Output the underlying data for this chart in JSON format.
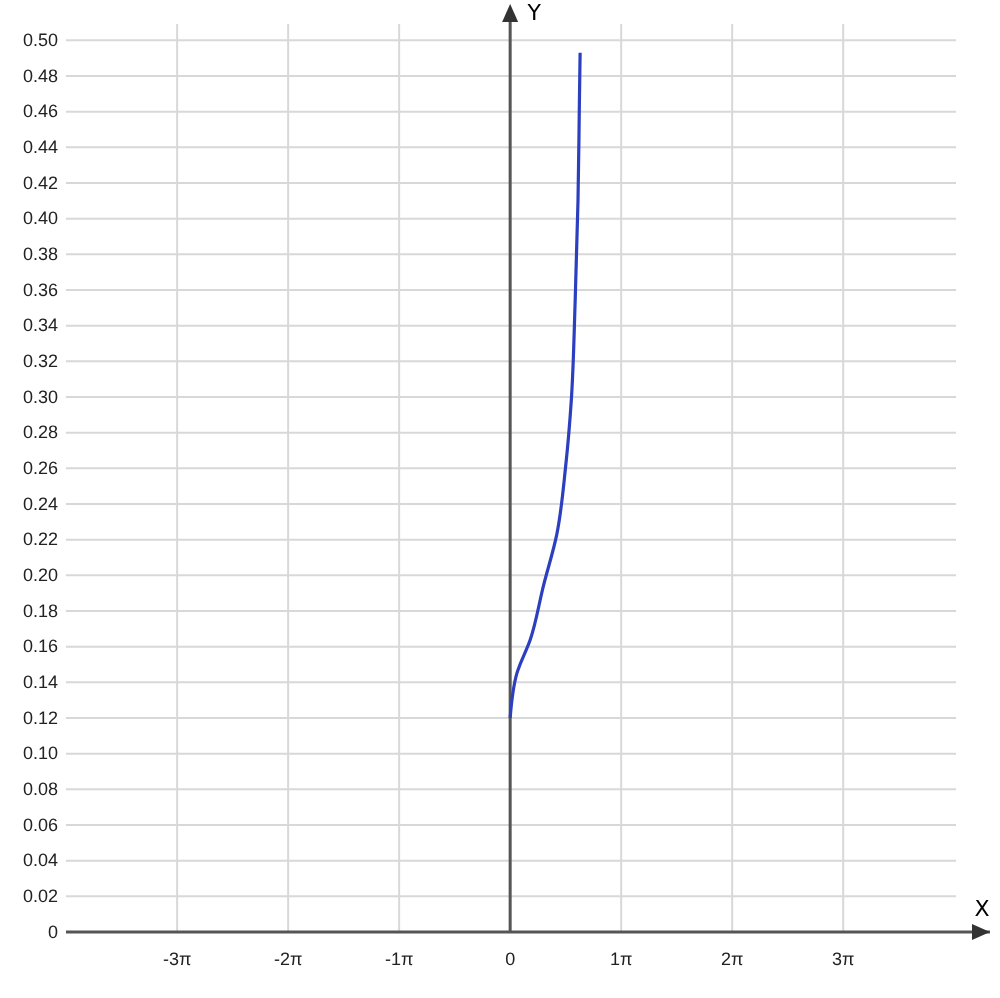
{
  "chart_data": {
    "type": "line",
    "xlabel": "X",
    "ylabel": "Y",
    "x": [
      0,
      0.19,
      0.57,
      0.94,
      1.32,
      1.57,
      1.73,
      1.84,
      1.92,
      1.96,
      1.98
    ],
    "series": [
      {
        "color": "#2b3fbf",
        "values": [
          0.12,
          0.145,
          0.164,
          0.194,
          0.223,
          0.261,
          0.298,
          0.354,
          0.41,
          0.466,
          0.493
        ]
      }
    ],
    "xlim": [
      -12.57,
      13.58
    ],
    "ylim": [
      0,
      0.517
    ],
    "xticks": [
      {
        "value": -9.42478,
        "label": "-3π"
      },
      {
        "value": -6.28319,
        "label": "-2π"
      },
      {
        "value": -3.14159,
        "label": "-1π"
      },
      0,
      {
        "value": 3.14159,
        "label": "1π"
      },
      {
        "value": 6.28319,
        "label": "2π"
      },
      {
        "value": 9.42478,
        "label": "3π"
      }
    ],
    "yticks": [
      {
        "value": 0,
        "label": "0"
      },
      {
        "value": 0.02,
        "label": "0.02"
      },
      {
        "value": 0.04,
        "label": "0.04"
      },
      {
        "value": 0.06,
        "label": "0.06"
      },
      {
        "value": 0.08,
        "label": "0.08"
      },
      {
        "value": 0.1,
        "label": "0.10"
      },
      {
        "value": 0.12,
        "label": "0.12"
      },
      {
        "value": 0.14,
        "label": "0.14"
      },
      {
        "value": 0.16,
        "label": "0.16"
      },
      {
        "value": 0.18,
        "label": "0.18"
      },
      {
        "value": 0.2,
        "label": "0.20"
      },
      {
        "value": 0.22,
        "label": "0.22"
      },
      {
        "value": 0.24,
        "label": "0.24"
      },
      {
        "value": 0.26,
        "label": "0.26"
      },
      {
        "value": 0.28,
        "label": "0.28"
      },
      {
        "value": 0.3,
        "label": "0.30"
      },
      {
        "value": 0.32,
        "label": "0.32"
      },
      {
        "value": 0.34,
        "label": "0.34"
      },
      {
        "value": 0.36,
        "label": "0.36"
      },
      {
        "value": 0.38,
        "label": "0.38"
      },
      {
        "value": 0.4,
        "label": "0.40"
      },
      {
        "value": 0.42,
        "label": "0.42"
      },
      {
        "value": 0.44,
        "label": "0.44"
      },
      {
        "value": 0.46,
        "label": "0.46"
      },
      {
        "value": 0.48,
        "label": "0.48"
      },
      {
        "value": 0.5,
        "label": "0.50"
      }
    ],
    "grid": true,
    "line_style": "solid",
    "marker": "none"
  }
}
